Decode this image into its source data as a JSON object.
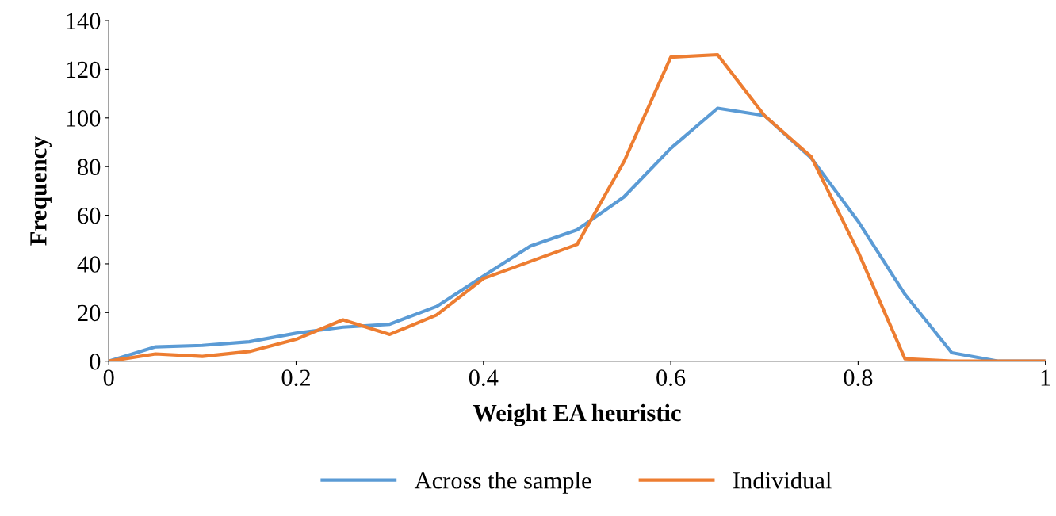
{
  "chart_data": {
    "type": "line",
    "xlabel": "Weight EA heuristic",
    "ylabel": "Frequency",
    "x": [
      0,
      0.05,
      0.1,
      0.15,
      0.2,
      0.25,
      0.3,
      0.35,
      0.4,
      0.45,
      0.5,
      0.55,
      0.6,
      0.65,
      0.7,
      0.75,
      0.8,
      0.85,
      0.9,
      0.95,
      1
    ],
    "series": [
      {
        "name": "Across the sample",
        "color": "#5b9bd5",
        "values": [
          0,
          5.9,
          6.5,
          8,
          11.5,
          14,
          15.2,
          22.5,
          35,
          47.3,
          54,
          67.5,
          87.5,
          104,
          101,
          83.5,
          57.5,
          27.5,
          3.5,
          0,
          0
        ]
      },
      {
        "name": "Individual",
        "color": "#ed7d31",
        "values": [
          0,
          3,
          2,
          4,
          9,
          17,
          11,
          19,
          34,
          41,
          48,
          82,
          125,
          126,
          101,
          84,
          45,
          1,
          0,
          0,
          0
        ]
      }
    ],
    "xlim": [
      0,
      1
    ],
    "xticks": [
      0,
      0.2,
      0.4,
      0.6,
      0.8,
      1
    ],
    "ylim": [
      0,
      140
    ],
    "yticks": [
      0,
      20,
      40,
      60,
      80,
      100,
      120,
      140
    ],
    "grid": false,
    "legend": "bottom",
    "marker": "none",
    "line_style": "solid"
  }
}
